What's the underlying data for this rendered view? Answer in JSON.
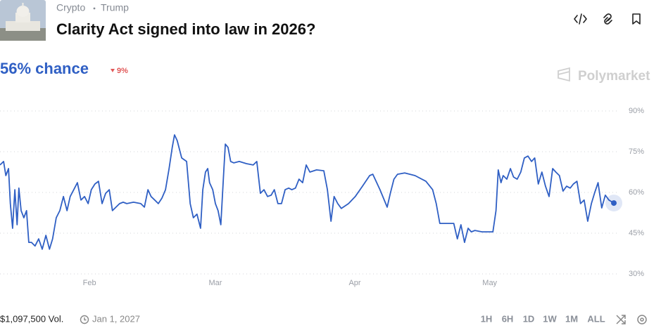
{
  "header": {
    "tags": [
      "Crypto",
      "Trump"
    ],
    "title": "Clarity Act signed into law in 2026?",
    "chance": "56% chance",
    "change": "9%",
    "brand": "Polymarket"
  },
  "chart_data": {
    "type": "line",
    "color": "#2f5fc4",
    "x": [
      11.1,
      11.9,
      12.4,
      13.0,
      13.4,
      13.9,
      14.4,
      14.9,
      15.3,
      15.8,
      16.4,
      17.0,
      17.5,
      18.1,
      18.9,
      19.7,
      20.5,
      21.3,
      22.1,
      22.8,
      23.6,
      24.4,
      25.2,
      26.0,
      26.7,
      27.5,
      28.3,
      29.1,
      29.9,
      30.7,
      31.4,
      32.2,
      33.0,
      33.8,
      34.6,
      35.4,
      36.1,
      36.9,
      37.7,
      38.5,
      39.3,
      40.8,
      42.4,
      43.2,
      44.0,
      44.7,
      45.5,
      46.3,
      47.1,
      47.9,
      48.7,
      49.4,
      49.9,
      50.5,
      51.5,
      52.6,
      53.4,
      54.1,
      54.9,
      55.7,
      56.2,
      56.8,
      57.3,
      57.7,
      58.4,
      59.0,
      59.6,
      60.2,
      60.9,
      61.2,
      61.8,
      62.4,
      63.1,
      64.3,
      65.9,
      67.4,
      68.2,
      69.0,
      69.8,
      70.6,
      71.4,
      72.1,
      72.9,
      73.7,
      74.5,
      75.3,
      76.0,
      76.8,
      77.6,
      78.4,
      79.2,
      80.0,
      81.5,
      83.1,
      83.9,
      84.7,
      85.4,
      86.2,
      87.0,
      88.6,
      90.1,
      91.7,
      93.3,
      94.0,
      95.6,
      97.2,
      97.9,
      98.7,
      99.5,
      101.1,
      103.4,
      105.8,
      107.3,
      108.1,
      108.9,
      110.5,
      112.0,
      112.8,
      113.6,
      114.4,
      115.2,
      115.9,
      116.7,
      118.3,
      120.7,
      121.4,
      121.9,
      122.5,
      123.0,
      123.8,
      124.6,
      125.3,
      126.1,
      126.9,
      127.7,
      128.5,
      129.3,
      130.0,
      130.8,
      131.6,
      132.4,
      133.2,
      134.0,
      134.7,
      135.5,
      136.3,
      137.1,
      137.9,
      138.6,
      139.4,
      140.2,
      141.0,
      141.8,
      142.6,
      143.3,
      144.1,
      144.9,
      145.7,
      146.5,
      147.6
    ],
    "values": [
      70.1,
      71.4,
      66.2,
      68.8,
      55.9,
      46.8,
      61.0,
      48.1,
      61.6,
      53.3,
      50.7,
      53.3,
      41.6,
      41.6,
      40.3,
      42.9,
      39.1,
      44.2,
      39.1,
      42.9,
      50.7,
      53.3,
      58.5,
      53.3,
      58.5,
      61.0,
      63.6,
      57.2,
      58.5,
      55.9,
      61.0,
      63.1,
      64.1,
      55.9,
      59.7,
      61.0,
      53.3,
      54.6,
      55.9,
      56.4,
      55.9,
      56.4,
      55.9,
      54.6,
      61.0,
      58.5,
      57.2,
      55.9,
      57.9,
      61.0,
      68.8,
      76.6,
      81.2,
      79.1,
      72.7,
      71.4,
      55.9,
      50.7,
      52.0,
      46.8,
      61.0,
      67.5,
      68.8,
      63.6,
      61.0,
      55.9,
      53.3,
      48.1,
      68.8,
      77.8,
      76.6,
      71.4,
      70.9,
      71.4,
      70.6,
      70.1,
      71.4,
      59.7,
      61.0,
      58.5,
      59.0,
      61.0,
      55.9,
      55.9,
      61.0,
      61.6,
      61.0,
      61.6,
      64.9,
      63.6,
      70.1,
      67.5,
      68.3,
      68.0,
      61.0,
      49.4,
      58.5,
      55.9,
      54.1,
      55.9,
      58.5,
      62.3,
      66.2,
      66.7,
      61.0,
      54.6,
      59.7,
      64.9,
      66.7,
      67.2,
      66.2,
      64.1,
      61.0,
      55.9,
      48.6,
      48.6,
      48.6,
      42.9,
      48.1,
      41.6,
      46.8,
      45.5,
      46.0,
      45.5,
      45.5,
      53.3,
      68.3,
      63.6,
      66.2,
      64.9,
      68.8,
      65.7,
      64.9,
      67.5,
      72.7,
      73.4,
      71.4,
      72.7,
      63.1,
      67.5,
      62.3,
      58.5,
      68.8,
      67.5,
      66.2,
      60.5,
      62.3,
      61.6,
      63.1,
      64.1,
      55.9,
      57.2,
      49.4,
      55.9,
      59.7,
      63.6,
      54.3,
      59.0,
      57.2,
      56.1
    ],
    "xlim": [
      11.1,
      147.6
    ],
    "xticks": [
      {
        "value": 31,
        "label": "Feb"
      },
      {
        "value": 59,
        "label": "Mar"
      },
      {
        "value": 90,
        "label": "Apr"
      },
      {
        "value": 120,
        "label": "May"
      }
    ],
    "ylim": [
      30,
      90
    ],
    "yticks": [
      {
        "value": 30,
        "label": "30%"
      },
      {
        "value": 45,
        "label": "45%"
      },
      {
        "value": 60,
        "label": "60%"
      },
      {
        "value": 75,
        "label": "75%"
      },
      {
        "value": 90,
        "label": "90%"
      }
    ],
    "grid": true
  },
  "footer": {
    "volume": "$1,097,500 Vol.",
    "end_date": "Jan 1, 2027",
    "ranges": [
      "1H",
      "6H",
      "1D",
      "1W",
      "1M",
      "ALL"
    ]
  }
}
